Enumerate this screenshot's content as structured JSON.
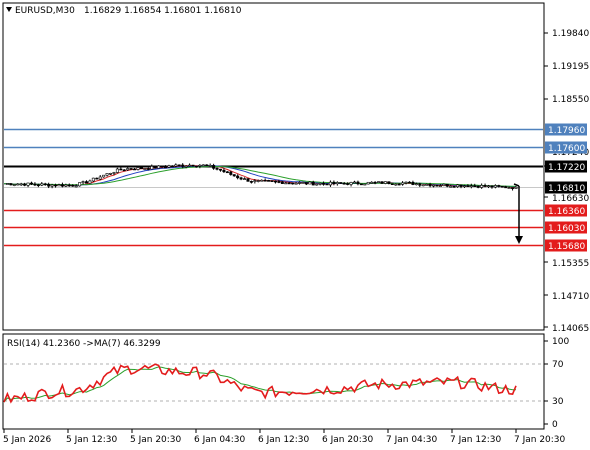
{
  "header": {
    "symbol": "EURUSD,M30",
    "ohlc": "1.16829 1.16854 1.16801 1.16810"
  },
  "price_axis": {
    "ticks": [
      "1.19840",
      "1.19195",
      "1.18550",
      "1.17240",
      "1.16630",
      "1.15355",
      "1.14710",
      "1.14065"
    ]
  },
  "levels": [
    {
      "label": "1.17960",
      "value": 1.1796,
      "color": "#4f81bd",
      "kind": "resistance"
    },
    {
      "label": "1.17600",
      "value": 1.176,
      "color": "#4f81bd",
      "kind": "resistance"
    },
    {
      "label": "1.17220",
      "value": 1.1722,
      "color": "#000000",
      "kind": "pivot"
    },
    {
      "label": "1.16810",
      "value": 1.1681,
      "color": "#000000",
      "kind": "current"
    },
    {
      "label": "1.16360",
      "value": 1.1636,
      "color": "#e31c1c",
      "kind": "support"
    },
    {
      "label": "1.16030",
      "value": 1.1603,
      "color": "#e31c1c",
      "kind": "support"
    },
    {
      "label": "1.15680",
      "value": 1.1568,
      "color": "#e31c1c",
      "kind": "support"
    }
  ],
  "rsi_panel": {
    "title": "RSI(14) 41.2360   ->MA(7) 46.3299",
    "ticks": [
      "100",
      "70",
      "30",
      "0"
    ]
  },
  "time_axis": {
    "labels": [
      "5 Jan 2026",
      "5 Jan 12:30",
      "5 Jan 20:30",
      "6 Jan 04:30",
      "6 Jan 12:30",
      "6 Jan 20:30",
      "7 Jan 04:30",
      "7 Jan 12:30",
      "7 Jan 20:30"
    ]
  },
  "chart_data": [
    {
      "type": "line",
      "ylim": [
        1.1406,
        1.2022
      ],
      "x": [
        "5 Jan 2026",
        "5 Jan 12:30",
        "5 Jan 20:30",
        "6 Jan 04:30",
        "6 Jan 12:30",
        "6 Jan 20:30",
        "7 Jan 04:30",
        "7 Jan 12:30",
        "7 Jan 20:30"
      ],
      "series": [
        {
          "values": [
            1.1688,
            1.1685,
            1.1718,
            1.1725,
            1.1692,
            1.1688,
            1.169,
            1.1685,
            1.1681
          ]
        }
      ],
      "colors": {
        "price": "#000000",
        "ma_fast": "#d62728",
        "ma_slow": "#2ca02c",
        "ma_mid": "#1f3fbf"
      }
    },
    {
      "type": "line",
      "ylim": [
        0,
        100
      ],
      "levels": [
        70,
        30
      ],
      "x": [
        "5 Jan 2026",
        "5 Jan 12:30",
        "5 Jan 20:30",
        "6 Jan 04:30",
        "6 Jan 12:30",
        "6 Jan 20:30",
        "7 Jan 04:30",
        "7 Jan 12:30",
        "7 Jan 20:30"
      ],
      "series": [
        {
          "values": [
            30,
            40,
            67,
            62,
            38,
            42,
            48,
            50,
            41.236
          ]
        },
        {
          "values": [
            28,
            38,
            60,
            60,
            42,
            44,
            46,
            49,
            46.3299
          ]
        }
      ],
      "colors": {
        "rsi": "#e31c1c",
        "ma": "#2ca02c"
      }
    }
  ]
}
